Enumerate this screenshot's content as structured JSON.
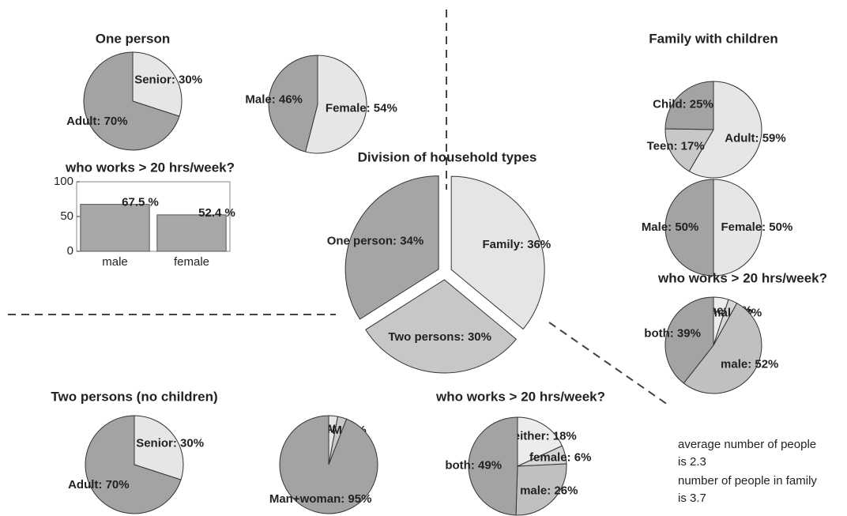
{
  "chart_data": [
    {
      "type": "pie",
      "title": "One person",
      "values": [
        30,
        70
      ],
      "value_labels": [
        "Senior: 30%",
        "Adult: 70%"
      ],
      "colors": [
        "#e6e6e6",
        "#a3a3a5"
      ]
    },
    {
      "type": "pie",
      "values": [
        54,
        46
      ],
      "value_labels": [
        "Female: 54%",
        "Male: 46%"
      ],
      "colors": [
        "#e6e6e6",
        "#a3a3a5"
      ]
    },
    {
      "type": "bar",
      "title": "who works > 20 hrs/week?",
      "categories": [
        "male",
        "female"
      ],
      "values": [
        67.5,
        52.4
      ],
      "value_labels": [
        "67.5 %",
        "52.4 %"
      ],
      "color": "#a7a7a9",
      "ylim": [
        0,
        100
      ],
      "yticks": [
        0,
        50,
        100
      ]
    },
    {
      "type": "pie",
      "title": "Division of household types",
      "values": [
        36,
        30,
        34
      ],
      "value_labels": [
        "Family: 36%",
        "Two persons: 30%",
        "One person: 34%"
      ],
      "colors": [
        "#e5e5e5",
        "#c7c7c7",
        "#a5a5a7"
      ],
      "explode": true
    },
    {
      "type": "pie",
      "title": "Family with children",
      "values": [
        59,
        17,
        25
      ],
      "value_labels": [
        "Adult: 59%",
        "Teen: 17%",
        "Child: 25%"
      ],
      "colors": [
        "#e6e6e6",
        "#c8c8c8",
        "#a3a3a5"
      ]
    },
    {
      "type": "pie",
      "values": [
        50,
        50
      ],
      "value_labels": [
        "Female: 50%",
        "Male: 50%"
      ],
      "colors": [
        "#e6e6e6",
        "#a3a3a5"
      ]
    },
    {
      "type": "pie",
      "title": "who works > 20 hrs/week?",
      "values": [
        5,
        3,
        52,
        39
      ],
      "value_labels": [
        "neither: 5%",
        "female: 3%",
        "male: 52%",
        "both: 39%"
      ],
      "colors": [
        "#ececec",
        "#d6d6d6",
        "#c0c0c0",
        "#a3a3a5"
      ]
    },
    {
      "type": "pie",
      "title": "Two persons (no children)",
      "values": [
        30,
        70
      ],
      "value_labels": [
        "Senior: 30%",
        "Adult: 70%"
      ],
      "colors": [
        "#e6e6e6",
        "#a3a3a5"
      ]
    },
    {
      "type": "pie",
      "values": [
        3,
        3,
        95
      ],
      "value_labels": [
        "W+W: 3%",
        "M+M: 3%",
        "Man+woman: 95%"
      ],
      "colors": [
        "#e6e6e6",
        "#c8c8c8",
        "#a3a3a5"
      ]
    },
    {
      "type": "pie",
      "title": "who works > 20 hrs/week?",
      "values": [
        18,
        6,
        26,
        49
      ],
      "value_labels": [
        "neither: 18%",
        "female: 6%",
        "male: 26%",
        "both: 49%"
      ],
      "colors": [
        "#ececec",
        "#d6d6d6",
        "#c0c0c0",
        "#a3a3a5"
      ]
    }
  ],
  "notes": [
    "average number of people",
    "is 2.3",
    "number of people in family",
    "is 3.7"
  ]
}
